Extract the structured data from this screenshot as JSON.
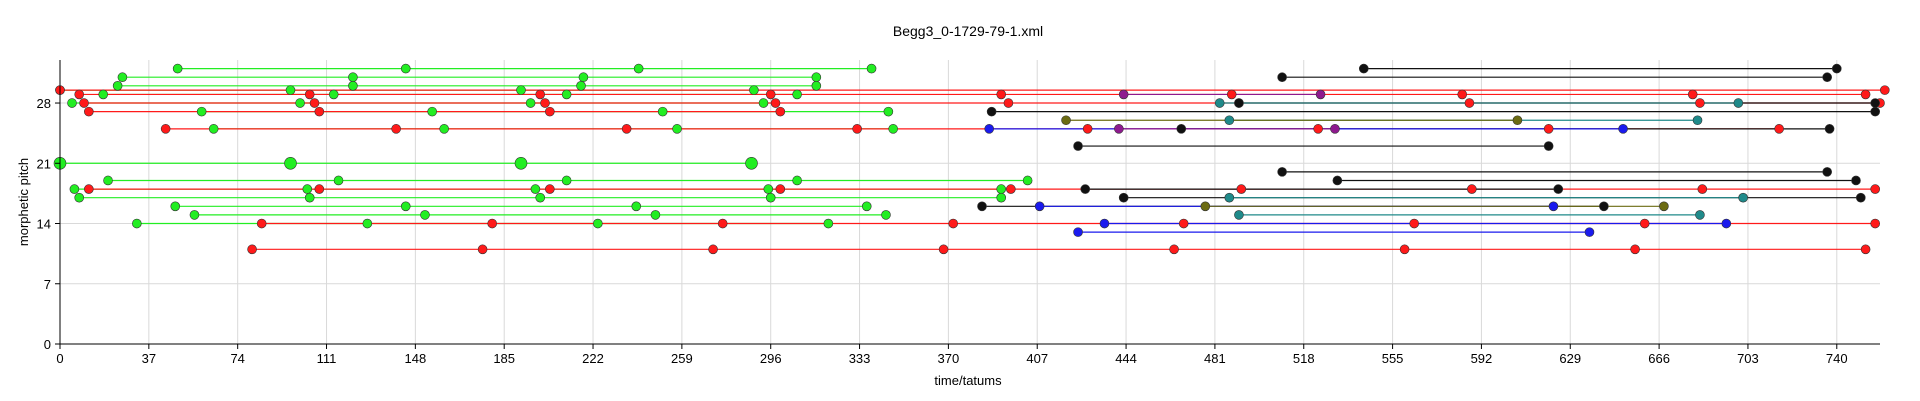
{
  "chart_data": {
    "type": "scatter",
    "title": "Begg3_0-1729-79-1.xml",
    "xlabel": "time/tatums",
    "ylabel": "morphetic pitch",
    "xlim": [
      0,
      758
    ],
    "ylim": [
      0,
      33
    ],
    "xticks": [
      0,
      37,
      74,
      111,
      148,
      185,
      222,
      259,
      296,
      333,
      370,
      407,
      444,
      481,
      518,
      555,
      592,
      629,
      666,
      703,
      740
    ],
    "yticks": [
      0,
      7,
      14,
      21,
      28
    ],
    "grid": true,
    "legend": "none",
    "colors": {
      "green": "#22ee22",
      "red": "#ff1a1a",
      "black": "#111111",
      "blue": "#1a1aee",
      "teal": "#1f8a8a",
      "purple": "#8e1a8e",
      "olive": "#6b6b12"
    },
    "series": [
      {
        "color": "green",
        "segments": [
          {
            "y": 32,
            "x": [
              49,
              144,
              241,
              338
            ]
          },
          {
            "y": 31,
            "x": [
              26,
              122,
              218,
              315
            ]
          },
          {
            "y": 30,
            "x": [
              24,
              122,
              217,
              315
            ]
          },
          {
            "y": 29.5,
            "x": [
              0,
              96,
              192,
              289
            ]
          },
          {
            "y": 29,
            "x": [
              18,
              114,
              211,
              307
            ]
          },
          {
            "y": 28,
            "x": [
              5,
              100,
              196,
              293
            ]
          },
          {
            "y": 27,
            "x": [
              59,
              155,
              251,
              345
            ]
          },
          {
            "y": 25,
            "x": [
              64,
              160,
              257,
              347
            ]
          },
          {
            "y": 21,
            "x": [
              0,
              96,
              192,
              288
            ],
            "big": true
          },
          {
            "y": 19,
            "x": [
              20,
              116,
              211,
              307,
              403
            ]
          },
          {
            "y": 18,
            "x": [
              6,
              103,
              198,
              295,
              392
            ]
          },
          {
            "y": 17,
            "x": [
              8,
              104,
              200,
              296,
              392
            ]
          },
          {
            "y": 16,
            "x": [
              48,
              144,
              240,
              336
            ]
          },
          {
            "y": 15,
            "x": [
              56,
              152,
              248,
              344
            ]
          },
          {
            "y": 14,
            "x": [
              32,
              128,
              224,
              320
            ]
          }
        ]
      },
      {
        "color": "red",
        "segments": [
          {
            "y": 29.5,
            "x": [
              0,
              760
            ]
          },
          {
            "y": 29,
            "x": [
              8,
              104,
              200,
              296,
              392,
              488,
              584,
              680,
              752
            ]
          },
          {
            "y": 28,
            "x": [
              10,
              106,
              202,
              298,
              395,
              491,
              587,
              683,
              758
            ]
          },
          {
            "y": 27,
            "x": [
              12,
              108,
              204,
              300
            ]
          },
          {
            "y": 25,
            "x": [
              44,
              140,
              236,
              332,
              428,
              524,
              620,
              716
            ]
          },
          {
            "y": 18,
            "x": [
              12,
              108,
              204,
              300,
              396,
              492,
              588,
              684,
              756
            ]
          },
          {
            "y": 14,
            "x": [
              84,
              180,
              276,
              372,
              468,
              564,
              660,
              756
            ]
          },
          {
            "y": 11,
            "x": [
              80,
              176,
              272,
              368,
              464,
              560,
              656,
              752
            ]
          }
        ]
      },
      {
        "color": "black",
        "segments": [
          {
            "y": 32,
            "x": [
              543,
              740
            ]
          },
          {
            "y": 31,
            "x": [
              509,
              736
            ]
          },
          {
            "y": 28,
            "x": [
              491,
              756
            ]
          },
          {
            "y": 27,
            "x": [
              388,
              756
            ]
          },
          {
            "y": 25,
            "x": [
              467,
              737
            ]
          },
          {
            "y": 23,
            "x": [
              424,
              620
            ]
          },
          {
            "y": 20,
            "x": [
              509,
              736
            ]
          },
          {
            "y": 19,
            "x": [
              532,
              748
            ]
          },
          {
            "y": 18,
            "x": [
              427,
              624
            ]
          },
          {
            "y": 17,
            "x": [
              443,
              750
            ]
          },
          {
            "y": 16,
            "x": [
              384,
              643
            ]
          }
        ]
      },
      {
        "color": "blue",
        "segments": [
          {
            "y": 25,
            "x": [
              387,
              651
            ]
          },
          {
            "y": 16,
            "x": [
              408,
              622
            ]
          },
          {
            "y": 14,
            "x": [
              435,
              694
            ]
          },
          {
            "y": 13,
            "x": [
              424,
              637
            ]
          }
        ]
      },
      {
        "color": "teal",
        "segments": [
          {
            "y": 28,
            "x": [
              483,
              699
            ]
          },
          {
            "y": 26,
            "x": [
              487,
              682
            ]
          },
          {
            "y": 17,
            "x": [
              487,
              701
            ]
          },
          {
            "y": 15,
            "x": [
              491,
              683
            ]
          }
        ]
      },
      {
        "color": "purple",
        "segments": [
          {
            "y": 29,
            "x": [
              443,
              525
            ]
          },
          {
            "y": 25,
            "x": [
              441,
              531
            ]
          }
        ]
      },
      {
        "color": "olive",
        "segments": [
          {
            "y": 26,
            "x": [
              419,
              607
            ]
          },
          {
            "y": 16,
            "x": [
              477,
              668
            ]
          }
        ]
      }
    ]
  }
}
